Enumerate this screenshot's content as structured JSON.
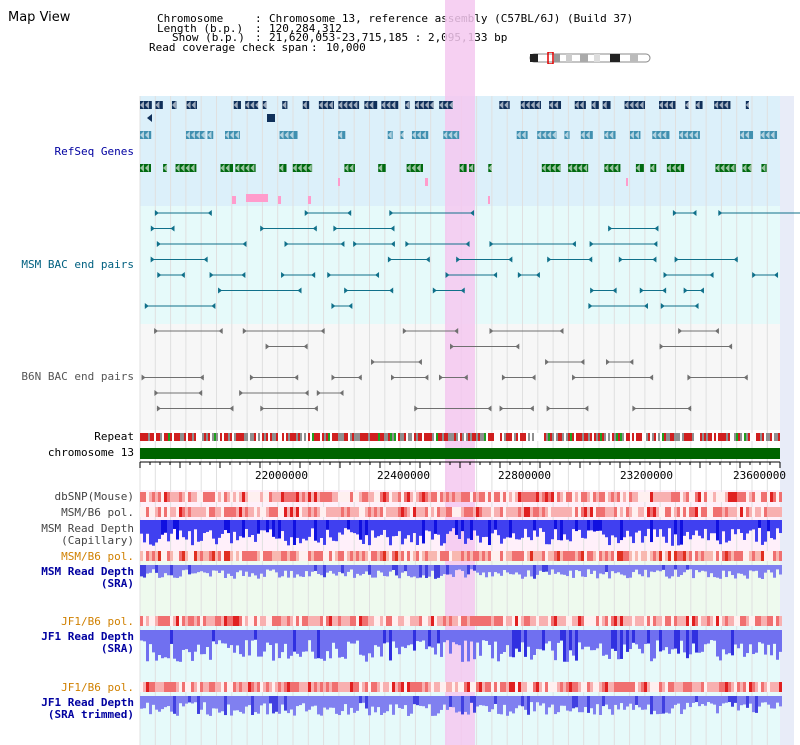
{
  "title": "Map View",
  "info": {
    "chromosome_label": "Chromosome",
    "chromosome_value": "Chromosome 13, reference assembly (C57BL/6J) (Build 37)",
    "length_label": "Length (b.p.)",
    "length_value": "120,284,312",
    "show_label": "Show (b.p.)",
    "show_value": "21,620,053-23,715,185 : 2,095,133 bp",
    "coverage_label": "Read coverage check span",
    "coverage_value": "10,000"
  },
  "tracks": {
    "refseq": "RefSeq Genes",
    "msm_bac": "MSM BAC end pairs",
    "b6n_bac": "B6N BAC end pairs",
    "repeat": "Repeat",
    "chromosome": "chromosome 13",
    "dbsnp": "dbSNP(Mouse)",
    "msm_b6_pol_1": "MSM/B6 pol.",
    "msm_read_depth_cap_1": "MSM Read Depth",
    "msm_read_depth_cap_2": "(Capillary)",
    "msm_b6_pol_2": "MSM/B6 pol.",
    "msm_read_depth_sra_1": "MSM Read Depth",
    "msm_read_depth_sra_2": "(SRA)",
    "jf1_b6_pol_1": "JF1/B6 pol.",
    "jf1_read_depth_sra_1": "JF1 Read Depth",
    "jf1_read_depth_sra_2": "(SRA)",
    "jf1_b6_pol_2": "JF1/B6 pol.",
    "jf1_read_depth_trim_1": "JF1 Read Depth",
    "jf1_read_depth_trim_2": "(SRA trimmed)"
  },
  "axis": {
    "ticks": [
      "22000000",
      "22400000",
      "22800000",
      "23200000",
      "23600000"
    ]
  },
  "colors": {
    "refseq_bg": "#dcf0fa",
    "msm_bac_bg": "#e6fafa",
    "b6n_bg": "#f7f7f7",
    "highlight": "#f4c8f0",
    "chromosome": "#006400",
    "label_blue": "#0000a0",
    "label_teal": "#006080",
    "label_orange": "#d08000"
  }
}
